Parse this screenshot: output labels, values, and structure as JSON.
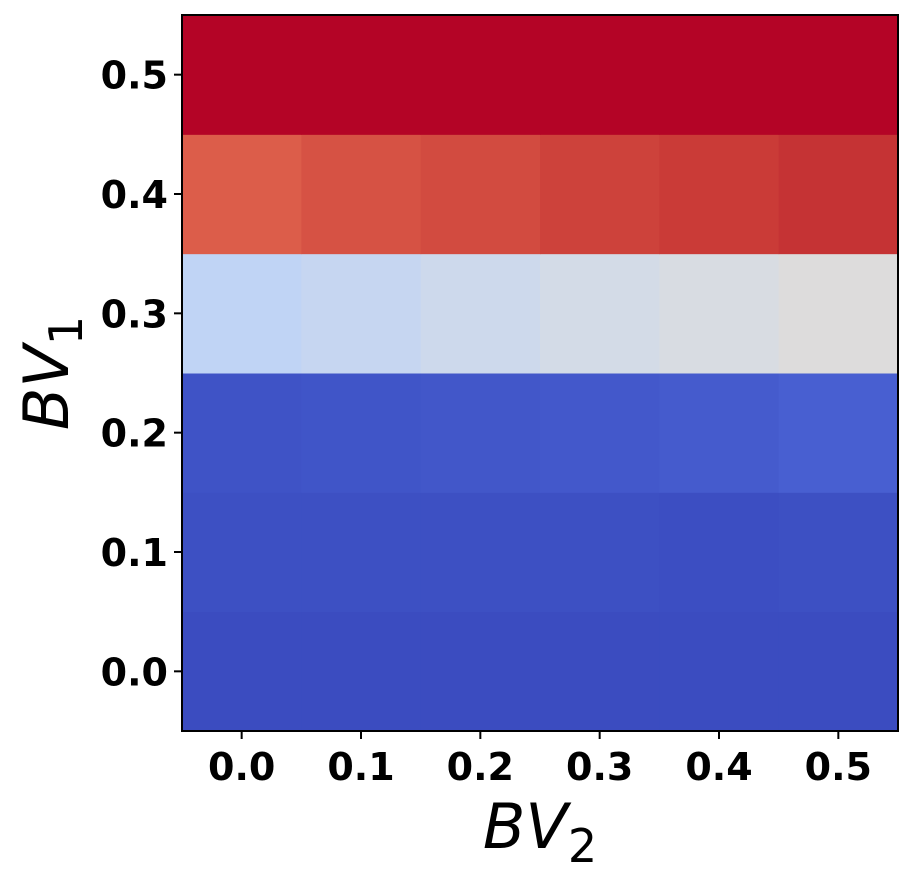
{
  "chart_data": {
    "type": "heatmap",
    "title": "",
    "xlabel": {
      "base": "BV",
      "sub": "2"
    },
    "ylabel": {
      "base": "BV",
      "sub": "1"
    },
    "x_categories": [
      "0.0",
      "0.1",
      "0.2",
      "0.3",
      "0.4",
      "0.5"
    ],
    "y_categories": [
      "0.0",
      "0.1",
      "0.2",
      "0.3",
      "0.4",
      "0.5"
    ],
    "colormap": "coolwarm",
    "grid": false,
    "colorbar": false,
    "cell_colors": [
      [
        "#3b4cc0",
        "#3b4cc0",
        "#3b4cc0",
        "#3b4cc0",
        "#3b4cc0",
        "#3b4cc0"
      ],
      [
        "#3d50c3",
        "#3d50c3",
        "#3d50c3",
        "#3d50c3",
        "#3c4ec2",
        "#3d50c3"
      ],
      [
        "#3f53c6",
        "#4055c8",
        "#4257c9",
        "#4358cb",
        "#455bcd",
        "#485fd1"
      ],
      [
        "#c0d4f5",
        "#c6d6f1",
        "#cdd9ec",
        "#d3dbe7",
        "#d8dce2",
        "#dddcdc"
      ],
      [
        "#dc5d4a",
        "#d65244",
        "#d24b40",
        "#cd423b",
        "#ca3b37",
        "#c53334"
      ],
      [
        "#b40426",
        "#b40426",
        "#b40426",
        "#b40426",
        "#b40426",
        "#b40426"
      ]
    ]
  }
}
